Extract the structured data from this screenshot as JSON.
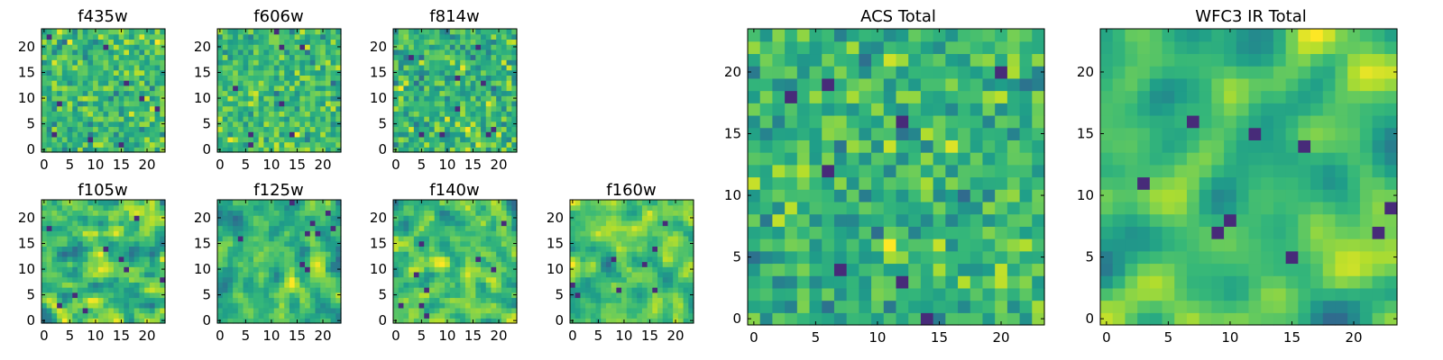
{
  "figure": {
    "colormap": "viridis",
    "value_range": [
      -3,
      3
    ]
  },
  "chart_data": [
    {
      "type": "heatmap",
      "title": "f435w",
      "grid": [
        24,
        24
      ],
      "xticks": [
        0,
        5,
        10,
        15,
        20
      ],
      "yticks": [
        0,
        5,
        10,
        15,
        20
      ],
      "seed": 101,
      "smooth": 0
    },
    {
      "type": "heatmap",
      "title": "f606w",
      "grid": [
        24,
        24
      ],
      "xticks": [
        0,
        5,
        10,
        15,
        20
      ],
      "yticks": [
        0,
        5,
        10,
        15,
        20
      ],
      "seed": 202,
      "smooth": 0
    },
    {
      "type": "heatmap",
      "title": "f814w",
      "grid": [
        24,
        24
      ],
      "xticks": [
        0,
        5,
        10,
        15,
        20
      ],
      "yticks": [
        0,
        5,
        10,
        15,
        20
      ],
      "seed": 303,
      "smooth": 0
    },
    {
      "type": "heatmap",
      "title": "f105w",
      "grid": [
        24,
        24
      ],
      "xticks": [
        0,
        5,
        10,
        15,
        20
      ],
      "yticks": [
        0,
        5,
        10,
        15,
        20
      ],
      "seed": 404,
      "smooth": 1
    },
    {
      "type": "heatmap",
      "title": "f125w",
      "grid": [
        24,
        24
      ],
      "xticks": [
        0,
        5,
        10,
        15,
        20
      ],
      "yticks": [
        0,
        5,
        10,
        15,
        20
      ],
      "seed": 505,
      "smooth": 1
    },
    {
      "type": "heatmap",
      "title": "f140w",
      "grid": [
        24,
        24
      ],
      "xticks": [
        0,
        5,
        10,
        15,
        20
      ],
      "yticks": [
        0,
        5,
        10,
        15,
        20
      ],
      "seed": 606,
      "smooth": 1
    },
    {
      "type": "heatmap",
      "title": "f160w",
      "grid": [
        24,
        24
      ],
      "xticks": [
        0,
        5,
        10,
        15,
        20
      ],
      "yticks": [
        0,
        5,
        10,
        15,
        20
      ],
      "seed": 707,
      "smooth": 1
    },
    {
      "type": "heatmap",
      "title": "ACS Total",
      "grid": [
        24,
        24
      ],
      "xticks": [
        0,
        5,
        10,
        15,
        20
      ],
      "yticks": [
        0,
        5,
        10,
        15,
        20
      ],
      "seed": 808,
      "smooth": 0
    },
    {
      "type": "heatmap",
      "title": "WFC3 IR Total",
      "grid": [
        24,
        24
      ],
      "xticks": [
        0,
        5,
        10,
        15,
        20
      ],
      "yticks": [
        0,
        5,
        10,
        15,
        20
      ],
      "seed": 909,
      "smooth": 2
    }
  ]
}
